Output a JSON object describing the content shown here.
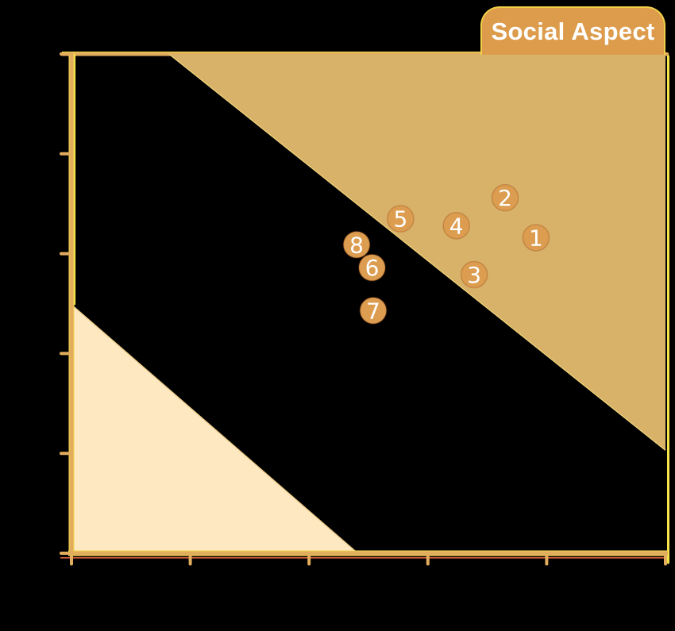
{
  "badge": {
    "label": "Social Aspect",
    "bg": "#dc9c4c",
    "border": "#f1cf49",
    "text_color": "#ffffff"
  },
  "canvas": {
    "bg": "#000000"
  },
  "chart_data": {
    "type": "scatter",
    "title": "Social Aspect",
    "xlabel": "",
    "ylabel": "",
    "xlim": [
      0,
      5
    ],
    "ylim": [
      0,
      5
    ],
    "x_ticks": [
      0,
      1,
      2,
      3,
      4,
      5
    ],
    "y_ticks": [
      0,
      1,
      2,
      3,
      4,
      5
    ],
    "grid": false,
    "points": [
      {
        "label": "1",
        "x": 3.91,
        "y": 3.16
      },
      {
        "label": "2",
        "x": 3.65,
        "y": 3.56
      },
      {
        "label": "3",
        "x": 3.39,
        "y": 2.79
      },
      {
        "label": "4",
        "x": 3.24,
        "y": 3.28
      },
      {
        "label": "5",
        "x": 2.77,
        "y": 3.35
      },
      {
        "label": "6",
        "x": 2.53,
        "y": 2.86
      },
      {
        "label": "7",
        "x": 2.54,
        "y": 2.43
      },
      {
        "label": "8",
        "x": 2.4,
        "y": 3.09
      }
    ],
    "zones": [
      {
        "name": "upper-band",
        "fill": "#d9b269",
        "edge_stroke": "#eed27a",
        "points": [
          [
            0.82,
            5
          ],
          [
            5,
            5
          ],
          [
            5,
            1.03
          ]
        ]
      },
      {
        "name": "lower-band",
        "fill": "#fde8c1",
        "edge_stroke": "#ecca85",
        "points": [
          [
            2.41,
            0
          ],
          [
            0,
            0
          ],
          [
            0,
            2.49
          ]
        ]
      }
    ],
    "marker": {
      "fill": "#dc9d50",
      "stroke": "rgba(150,75,25,0.32)",
      "radius": 16.6,
      "label_color": "#ffffff"
    },
    "axis_color": "#e2ad5d",
    "box_color": "#f0d84e",
    "highlight_color": "#f6e44a",
    "underline_color": "#de5f3e"
  }
}
